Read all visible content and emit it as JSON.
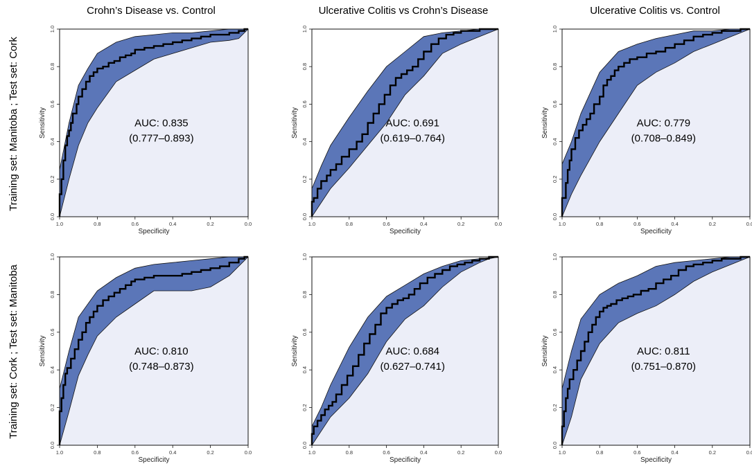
{
  "figure": {
    "column_titles": [
      "Crohn’s Disease vs. Control",
      "Ulcerative Colitis vs Crohn’s Disease",
      "Ulcerative Colitis vs. Control"
    ],
    "row_labels": [
      "Training set: Manitoba ; Test set: Cork",
      "Training set: Cork ; Test set: Manitoba"
    ]
  },
  "chart_data": [
    {
      "type": "line",
      "xlabel": "Specificity",
      "ylabel": "Sensitivity",
      "xlim": [
        1.0,
        0.0
      ],
      "ylim": [
        0.0,
        1.0
      ],
      "x_ticks": [
        "1.0",
        "0.8",
        "0.6",
        "0.4",
        "0.2",
        "0.0"
      ],
      "y_ticks": [
        "0.0",
        "0.2",
        "0.4",
        "0.6",
        "0.8",
        "1.0"
      ],
      "auc_label": "AUC: 0.835",
      "ci_label": "(0.777–0.893)",
      "colors": {
        "band": "#5b76b8",
        "fill": "#eceef8",
        "line": "#000000"
      },
      "roc": {
        "x": [
          1.0,
          1.0,
          0.99,
          0.98,
          0.97,
          0.96,
          0.95,
          0.94,
          0.93,
          0.91,
          0.9,
          0.88,
          0.86,
          0.84,
          0.82,
          0.8,
          0.77,
          0.74,
          0.71,
          0.68,
          0.65,
          0.62,
          0.6,
          0.55,
          0.5,
          0.45,
          0.4,
          0.35,
          0.3,
          0.25,
          0.2,
          0.15,
          0.1,
          0.05,
          0.02,
          0.0
        ],
        "y": [
          0.0,
          0.05,
          0.12,
          0.2,
          0.3,
          0.38,
          0.43,
          0.46,
          0.5,
          0.55,
          0.6,
          0.64,
          0.68,
          0.72,
          0.75,
          0.77,
          0.79,
          0.8,
          0.82,
          0.83,
          0.85,
          0.86,
          0.87,
          0.89,
          0.9,
          0.91,
          0.92,
          0.93,
          0.94,
          0.95,
          0.96,
          0.97,
          0.97,
          0.98,
          0.99,
          1.0
        ]
      },
      "ci_upper": {
        "x": [
          1.0,
          1.0,
          0.95,
          0.9,
          0.85,
          0.8,
          0.7,
          0.6,
          0.5,
          0.4,
          0.3,
          0.2,
          0.1,
          0.0
        ],
        "y": [
          0.0,
          0.25,
          0.5,
          0.7,
          0.79,
          0.87,
          0.93,
          0.96,
          0.97,
          0.98,
          0.98,
          0.99,
          1.0,
          1.0
        ]
      },
      "ci_lower": {
        "x": [
          1.0,
          0.95,
          0.9,
          0.85,
          0.8,
          0.7,
          0.6,
          0.5,
          0.4,
          0.3,
          0.2,
          0.1,
          0.05,
          0.0
        ],
        "y": [
          0.0,
          0.2,
          0.38,
          0.5,
          0.58,
          0.72,
          0.78,
          0.84,
          0.87,
          0.9,
          0.93,
          0.94,
          0.95,
          1.0
        ]
      }
    },
    {
      "type": "line",
      "xlabel": "Specificity",
      "ylabel": "Sensitivity",
      "xlim": [
        1.0,
        0.0
      ],
      "ylim": [
        0.0,
        1.0
      ],
      "x_ticks": [
        "1.0",
        "0.8",
        "0.6",
        "0.4",
        "0.2",
        "0.0"
      ],
      "y_ticks": [
        "0.0",
        "0.2",
        "0.4",
        "0.6",
        "0.8",
        "1.0"
      ],
      "auc_label": "AUC: 0.691",
      "ci_label": "(0.619–0.764)",
      "colors": {
        "band": "#5b76b8",
        "fill": "#eceef8",
        "line": "#000000"
      },
      "roc": {
        "x": [
          1.0,
          0.99,
          0.97,
          0.95,
          0.92,
          0.9,
          0.87,
          0.84,
          0.8,
          0.76,
          0.73,
          0.7,
          0.67,
          0.64,
          0.61,
          0.58,
          0.55,
          0.52,
          0.49,
          0.46,
          0.43,
          0.4,
          0.36,
          0.32,
          0.28,
          0.24,
          0.2,
          0.15,
          0.1,
          0.05,
          0.0
        ],
        "y": [
          0.0,
          0.08,
          0.1,
          0.15,
          0.19,
          0.22,
          0.25,
          0.28,
          0.32,
          0.36,
          0.4,
          0.44,
          0.5,
          0.55,
          0.6,
          0.65,
          0.7,
          0.74,
          0.76,
          0.78,
          0.8,
          0.84,
          0.88,
          0.92,
          0.95,
          0.97,
          0.98,
          0.99,
          0.99,
          1.0,
          1.0
        ]
      },
      "ci_upper": {
        "x": [
          1.0,
          1.0,
          0.95,
          0.9,
          0.8,
          0.7,
          0.6,
          0.5,
          0.4,
          0.3,
          0.2,
          0.1,
          0.0
        ],
        "y": [
          0.0,
          0.15,
          0.27,
          0.38,
          0.53,
          0.67,
          0.8,
          0.88,
          0.96,
          0.98,
          0.99,
          1.0,
          1.0
        ]
      },
      "ci_lower": {
        "x": [
          1.0,
          0.9,
          0.8,
          0.7,
          0.6,
          0.5,
          0.4,
          0.3,
          0.2,
          0.1,
          0.05,
          0.0
        ],
        "y": [
          0.0,
          0.15,
          0.26,
          0.38,
          0.5,
          0.65,
          0.75,
          0.87,
          0.92,
          0.96,
          0.98,
          1.0
        ]
      }
    },
    {
      "type": "line",
      "xlabel": "Specificity",
      "ylabel": "Sensitivity",
      "xlim": [
        1.0,
        0.0
      ],
      "ylim": [
        0.0,
        1.0
      ],
      "x_ticks": [
        "1.0",
        "0.8",
        "0.6",
        "0.4",
        "0.2",
        "0.0"
      ],
      "y_ticks": [
        "0.0",
        "0.2",
        "0.4",
        "0.6",
        "0.8",
        "1.0"
      ],
      "auc_label": "AUC: 0.779",
      "ci_label": "(0.708–0.849)",
      "colors": {
        "band": "#5b76b8",
        "fill": "#eceef8",
        "line": "#000000"
      },
      "roc": {
        "x": [
          1.0,
          1.0,
          0.98,
          0.97,
          0.96,
          0.95,
          0.93,
          0.91,
          0.89,
          0.87,
          0.85,
          0.83,
          0.8,
          0.78,
          0.76,
          0.74,
          0.72,
          0.7,
          0.67,
          0.64,
          0.6,
          0.55,
          0.5,
          0.45,
          0.4,
          0.35,
          0.3,
          0.25,
          0.2,
          0.15,
          0.1,
          0.05,
          0.0
        ],
        "y": [
          0.0,
          0.05,
          0.1,
          0.18,
          0.25,
          0.3,
          0.36,
          0.42,
          0.46,
          0.49,
          0.52,
          0.55,
          0.6,
          0.64,
          0.7,
          0.73,
          0.75,
          0.78,
          0.8,
          0.82,
          0.84,
          0.85,
          0.87,
          0.88,
          0.9,
          0.92,
          0.94,
          0.96,
          0.97,
          0.98,
          0.99,
          0.99,
          1.0
        ]
      },
      "ci_upper": {
        "x": [
          1.0,
          1.0,
          0.95,
          0.9,
          0.8,
          0.7,
          0.6,
          0.5,
          0.4,
          0.3,
          0.2,
          0.1,
          0.0
        ],
        "y": [
          0.0,
          0.28,
          0.4,
          0.55,
          0.77,
          0.88,
          0.92,
          0.95,
          0.97,
          0.99,
          0.99,
          1.0,
          1.0
        ]
      },
      "ci_lower": {
        "x": [
          1.0,
          0.95,
          0.9,
          0.8,
          0.7,
          0.6,
          0.5,
          0.4,
          0.3,
          0.2,
          0.1,
          0.05,
          0.0
        ],
        "y": [
          0.0,
          0.12,
          0.22,
          0.4,
          0.55,
          0.7,
          0.77,
          0.82,
          0.88,
          0.92,
          0.96,
          0.98,
          1.0
        ]
      }
    },
    {
      "type": "line",
      "xlabel": "Specificity",
      "ylabel": "Sensitivity",
      "xlim": [
        1.0,
        0.0
      ],
      "ylim": [
        0.0,
        1.0
      ],
      "x_ticks": [
        "1.0",
        "0.8",
        "0.6",
        "0.4",
        "0.2",
        "0.0"
      ],
      "y_ticks": [
        "0.0",
        "0.2",
        "0.4",
        "0.6",
        "0.8",
        "1.0"
      ],
      "auc_label": "AUC: 0.810",
      "ci_label": "(0.748–0.873)",
      "colors": {
        "band": "#5b76b8",
        "fill": "#eceef8",
        "line": "#000000"
      },
      "roc": {
        "x": [
          1.0,
          1.0,
          0.99,
          0.98,
          0.97,
          0.96,
          0.94,
          0.92,
          0.9,
          0.88,
          0.86,
          0.84,
          0.82,
          0.8,
          0.77,
          0.74,
          0.71,
          0.68,
          0.65,
          0.62,
          0.6,
          0.55,
          0.5,
          0.45,
          0.4,
          0.35,
          0.3,
          0.25,
          0.2,
          0.15,
          0.1,
          0.05,
          0.02,
          0.0
        ],
        "y": [
          0.0,
          0.1,
          0.18,
          0.25,
          0.32,
          0.38,
          0.41,
          0.46,
          0.51,
          0.56,
          0.6,
          0.65,
          0.68,
          0.71,
          0.74,
          0.77,
          0.79,
          0.81,
          0.83,
          0.85,
          0.87,
          0.88,
          0.89,
          0.9,
          0.9,
          0.9,
          0.91,
          0.92,
          0.93,
          0.94,
          0.95,
          0.97,
          0.99,
          1.0
        ]
      },
      "ci_upper": {
        "x": [
          1.0,
          1.0,
          0.95,
          0.9,
          0.8,
          0.7,
          0.6,
          0.5,
          0.4,
          0.3,
          0.2,
          0.1,
          0.0
        ],
        "y": [
          0.0,
          0.3,
          0.5,
          0.68,
          0.82,
          0.89,
          0.94,
          0.96,
          0.97,
          0.98,
          0.99,
          1.0,
          1.0
        ]
      },
      "ci_lower": {
        "x": [
          1.0,
          0.95,
          0.9,
          0.85,
          0.8,
          0.7,
          0.6,
          0.5,
          0.4,
          0.3,
          0.2,
          0.1,
          0.0
        ],
        "y": [
          0.0,
          0.18,
          0.37,
          0.48,
          0.58,
          0.68,
          0.75,
          0.82,
          0.82,
          0.82,
          0.84,
          0.9,
          1.0
        ]
      }
    },
    {
      "type": "line",
      "xlabel": "Specificity",
      "ylabel": "Sensitivity",
      "xlim": [
        1.0,
        0.0
      ],
      "ylim": [
        0.0,
        1.0
      ],
      "x_ticks": [
        "1.0",
        "0.8",
        "0.6",
        "0.4",
        "0.2",
        "0.0"
      ],
      "y_ticks": [
        "0.0",
        "0.2",
        "0.4",
        "0.6",
        "0.8",
        "1.0"
      ],
      "auc_label": "AUC: 0.684",
      "ci_label": "(0.627–0.741)",
      "colors": {
        "band": "#5b76b8",
        "fill": "#eceef8",
        "line": "#000000"
      },
      "roc": {
        "x": [
          1.0,
          0.99,
          0.97,
          0.95,
          0.93,
          0.91,
          0.89,
          0.87,
          0.84,
          0.81,
          0.78,
          0.75,
          0.72,
          0.69,
          0.66,
          0.63,
          0.6,
          0.57,
          0.54,
          0.51,
          0.48,
          0.45,
          0.42,
          0.38,
          0.34,
          0.3,
          0.26,
          0.22,
          0.18,
          0.14,
          0.1,
          0.05,
          0.0
        ],
        "y": [
          0.0,
          0.06,
          0.1,
          0.13,
          0.16,
          0.19,
          0.21,
          0.23,
          0.27,
          0.32,
          0.37,
          0.42,
          0.48,
          0.54,
          0.59,
          0.64,
          0.7,
          0.73,
          0.75,
          0.77,
          0.78,
          0.8,
          0.83,
          0.86,
          0.89,
          0.91,
          0.93,
          0.95,
          0.96,
          0.97,
          0.98,
          0.99,
          1.0
        ]
      },
      "ci_upper": {
        "x": [
          1.0,
          1.0,
          0.95,
          0.9,
          0.8,
          0.7,
          0.6,
          0.5,
          0.4,
          0.3,
          0.2,
          0.1,
          0.0
        ],
        "y": [
          0.0,
          0.1,
          0.2,
          0.32,
          0.52,
          0.68,
          0.79,
          0.85,
          0.91,
          0.95,
          0.98,
          0.99,
          1.0
        ]
      },
      "ci_lower": {
        "x": [
          1.0,
          0.9,
          0.8,
          0.7,
          0.6,
          0.5,
          0.4,
          0.3,
          0.2,
          0.1,
          0.05,
          0.0
        ],
        "y": [
          0.0,
          0.15,
          0.25,
          0.38,
          0.55,
          0.67,
          0.74,
          0.84,
          0.92,
          0.97,
          0.99,
          1.0
        ]
      }
    },
    {
      "type": "line",
      "xlabel": "Specificity",
      "ylabel": "Sensitivity",
      "xlim": [
        1.0,
        0.0
      ],
      "ylim": [
        0.0,
        1.0
      ],
      "x_ticks": [
        "1.0",
        "0.8",
        "0.6",
        "0.4",
        "0.2",
        "0.0"
      ],
      "y_ticks": [
        "0.0",
        "0.2",
        "0.4",
        "0.6",
        "0.8",
        "1.0"
      ],
      "auc_label": "AUC: 0.811",
      "ci_label": "(0.751–0.870)",
      "colors": {
        "band": "#5b76b8",
        "fill": "#eceef8",
        "line": "#000000"
      },
      "roc": {
        "x": [
          1.0,
          1.0,
          0.99,
          0.98,
          0.97,
          0.96,
          0.94,
          0.92,
          0.9,
          0.88,
          0.86,
          0.84,
          0.82,
          0.8,
          0.78,
          0.76,
          0.74,
          0.71,
          0.68,
          0.65,
          0.62,
          0.58,
          0.54,
          0.5,
          0.46,
          0.42,
          0.38,
          0.34,
          0.3,
          0.25,
          0.2,
          0.15,
          0.1,
          0.05,
          0.0
        ],
        "y": [
          0.0,
          0.05,
          0.1,
          0.18,
          0.25,
          0.3,
          0.35,
          0.4,
          0.45,
          0.5,
          0.55,
          0.6,
          0.64,
          0.68,
          0.71,
          0.73,
          0.74,
          0.75,
          0.77,
          0.78,
          0.79,
          0.8,
          0.82,
          0.83,
          0.86,
          0.88,
          0.9,
          0.93,
          0.95,
          0.96,
          0.97,
          0.98,
          0.99,
          0.99,
          1.0
        ]
      },
      "ci_upper": {
        "x": [
          1.0,
          1.0,
          0.95,
          0.9,
          0.8,
          0.7,
          0.6,
          0.5,
          0.4,
          0.3,
          0.2,
          0.1,
          0.0
        ],
        "y": [
          0.0,
          0.3,
          0.5,
          0.67,
          0.8,
          0.86,
          0.9,
          0.95,
          0.97,
          0.98,
          0.99,
          1.0,
          1.0
        ]
      },
      "ci_lower": {
        "x": [
          1.0,
          0.95,
          0.9,
          0.8,
          0.7,
          0.6,
          0.5,
          0.4,
          0.3,
          0.2,
          0.1,
          0.05,
          0.0
        ],
        "y": [
          0.0,
          0.15,
          0.35,
          0.54,
          0.65,
          0.7,
          0.74,
          0.8,
          0.87,
          0.92,
          0.96,
          0.98,
          1.0
        ]
      }
    }
  ]
}
